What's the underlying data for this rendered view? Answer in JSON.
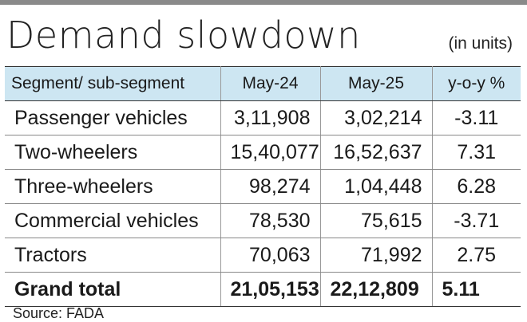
{
  "title": "Demand slowdown",
  "unit_note": "(in units)",
  "source": "Source: FADA",
  "chart_data": {
    "type": "table",
    "title": "Demand slowdown",
    "unit_note": "(in units)",
    "columns": [
      "Segment/ sub-segment",
      "May-24",
      "May-25",
      "y-o-y %"
    ],
    "rows": [
      {
        "segment": "Passenger vehicles",
        "may24": "3,11,908",
        "may25": "3,02,214",
        "yoy": "-3.11"
      },
      {
        "segment": "Two-wheelers",
        "may24": "15,40,077",
        "may25": "16,52,637",
        "yoy": "7.31"
      },
      {
        "segment": "Three-wheelers",
        "may24": "98,274",
        "may25": "1,04,448",
        "yoy": "6.28"
      },
      {
        "segment": "Commercial vehicles",
        "may24": "78,530",
        "may25": "75,615",
        "yoy": "-3.71"
      },
      {
        "segment": "Tractors",
        "may24": "70,063",
        "may25": "71,992",
        "yoy": "2.75"
      }
    ],
    "total": {
      "segment": "Grand total",
      "may24": "21,05,153",
      "may25": "22,12,809",
      "yoy": "5.11"
    },
    "source": "Source: FADA"
  },
  "colors": {
    "header_background": "#cde6f2",
    "top_rule": "#8a8a8a",
    "text": "#1a1a1a"
  }
}
